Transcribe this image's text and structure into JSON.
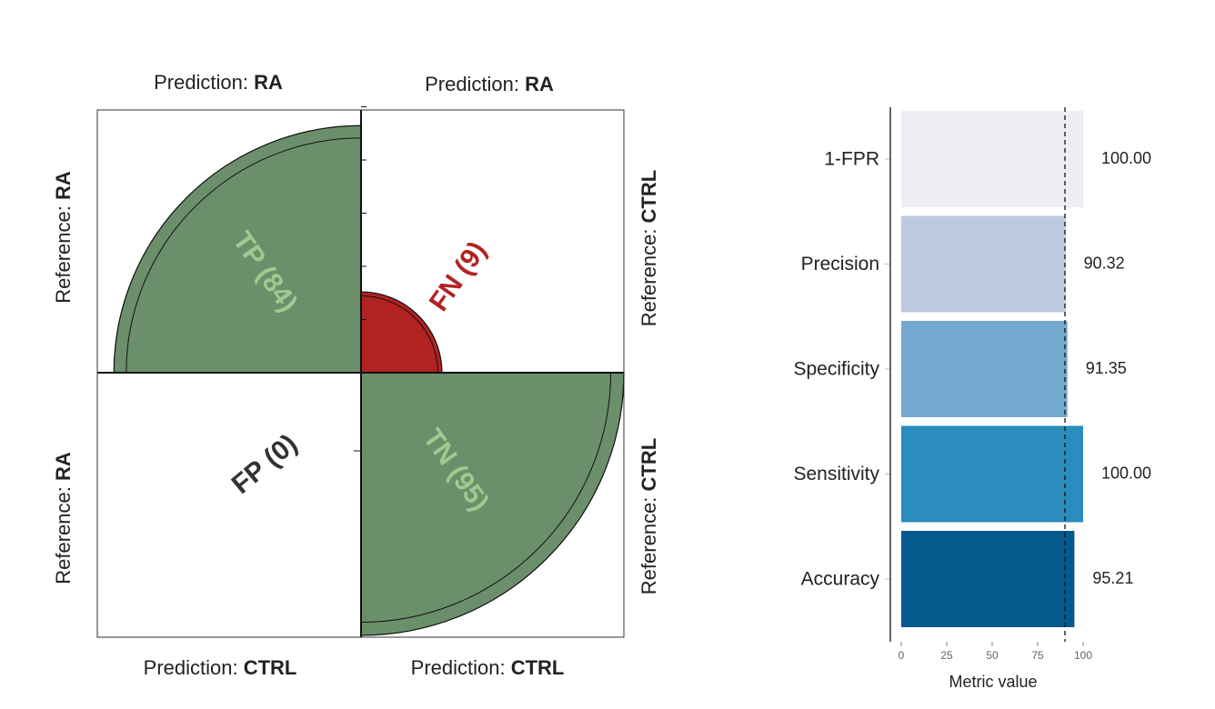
{
  "chart_data": [
    {
      "type": "fourfold",
      "cells": [
        {
          "label": "TP (84)",
          "count": 84,
          "position": "top-left",
          "color": "#6b8f6b",
          "text_color": "#9ccb8f"
        },
        {
          "label": "FN (9)",
          "count": 9,
          "position": "top-right",
          "color": "#b22222",
          "text_color": "#b22222"
        },
        {
          "label": "FP (0)",
          "count": 0,
          "position": "bottom-left",
          "color": "#6b8f6b",
          "text_color": "#333333"
        },
        {
          "label": "TN (95)",
          "count": 95,
          "position": "bottom-right",
          "color": "#6b8f6b",
          "text_color": "#9ccb8f"
        }
      ],
      "top_labels": [
        {
          "prefix": "Prediction: ",
          "value": "RA"
        },
        {
          "prefix": "Prediction: ",
          "value": "RA"
        }
      ],
      "bottom_labels": [
        {
          "prefix": "Prediction: ",
          "value": "CTRL"
        },
        {
          "prefix": "Prediction: ",
          "value": "CTRL"
        }
      ],
      "left_labels": [
        {
          "prefix": "Reference: ",
          "value": "RA"
        },
        {
          "prefix": "Reference: ",
          "value": "RA"
        }
      ],
      "right_labels": [
        {
          "prefix": "Reference: ",
          "value": "CTRL"
        },
        {
          "prefix": "Reference: ",
          "value": "CTRL"
        }
      ]
    },
    {
      "type": "bar",
      "orientation": "horizontal",
      "categories": [
        "1-FPR",
        "Precision",
        "Specificity",
        "Sensitivity",
        "Accuracy"
      ],
      "values": [
        100.0,
        90.32,
        91.35,
        100.0,
        95.21
      ],
      "value_labels": [
        "100.00",
        "90.32",
        "91.35",
        "100.00",
        "95.21"
      ],
      "colors": [
        "#ededf4",
        "#bdc9e1",
        "#74a9cf",
        "#2b8cbe",
        "#045a8d"
      ],
      "xlabel": "Metric value",
      "xlim": [
        0,
        100
      ],
      "xticks": [
        "0",
        "25",
        "50",
        "75",
        "100"
      ],
      "xtick_values": [
        0,
        25,
        50,
        75,
        100
      ],
      "reference_line": 90,
      "grid": false
    }
  ]
}
